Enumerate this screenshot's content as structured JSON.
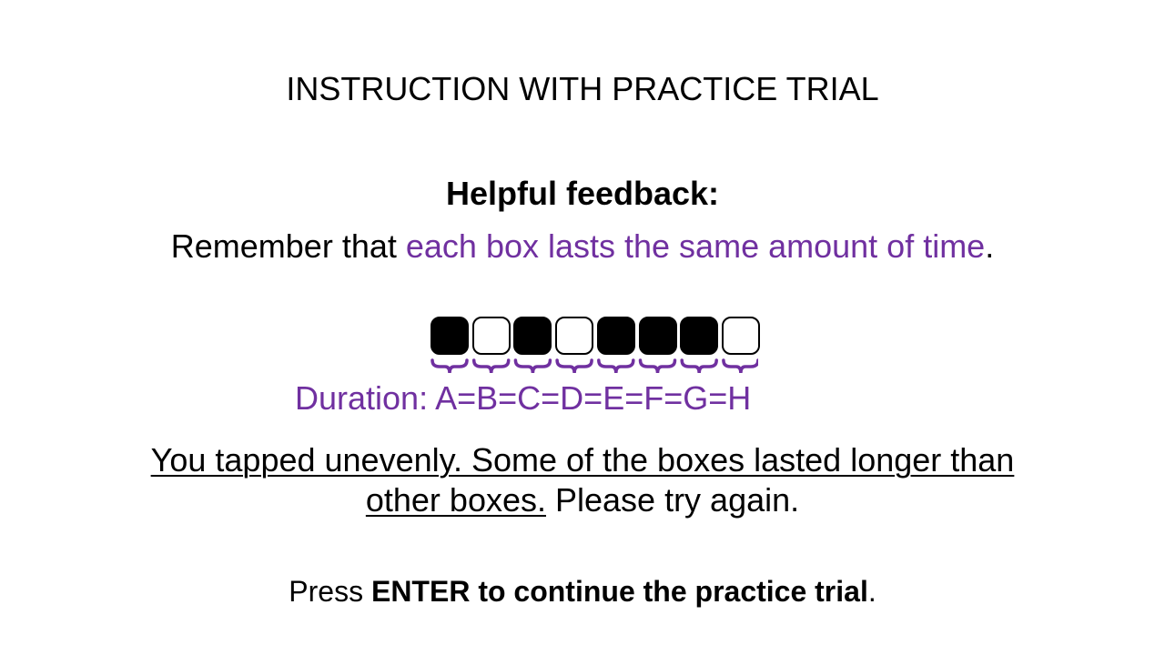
{
  "title": "INSTRUCTION WITH PRACTICE TRIAL",
  "subheading": "Helpful feedback:",
  "remember": {
    "prefix": "Remember that ",
    "highlight": "each box lasts the same amount of time",
    "suffix": "."
  },
  "boxes": [
    {
      "state": "filled"
    },
    {
      "state": "empty"
    },
    {
      "state": "filled"
    },
    {
      "state": "empty"
    },
    {
      "state": "filled"
    },
    {
      "state": "filled"
    },
    {
      "state": "filled"
    },
    {
      "state": "empty"
    }
  ],
  "duration_text": "Duration: A=B=C=D=E=F=G=H",
  "feedback": {
    "underlined_line1": "You tapped unevenly. Some of the boxes lasted longer than",
    "underlined_line2": "other boxes.",
    "rest": " Please try again."
  },
  "press": {
    "prefix": "Press ",
    "bold": "ENTER to continue the practice trial",
    "suffix": "."
  },
  "colors": {
    "accent": "#7030a0",
    "text": "#000000",
    "background": "#ffffff"
  }
}
